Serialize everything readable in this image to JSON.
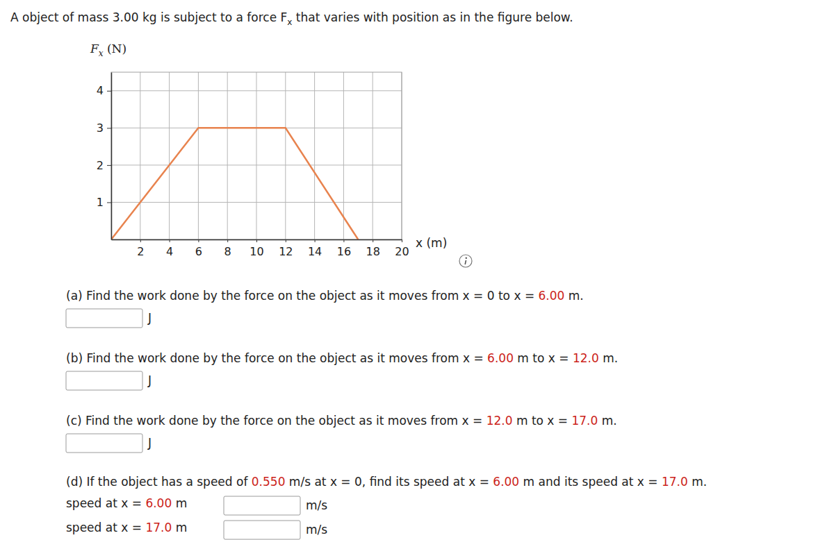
{
  "header": {
    "parts": [
      {
        "text": "A object of mass 3.00 kg is subject to a force F"
      },
      {
        "text": "x",
        "sub": true
      },
      {
        "text": " that varies with position as in the figure below."
      }
    ]
  },
  "chart_data": {
    "type": "line",
    "ylabel": [
      "F",
      "x",
      " (N)"
    ],
    "xlabel": "x (m)",
    "x": [
      0,
      6,
      12,
      17
    ],
    "values": [
      0,
      3,
      3,
      0
    ],
    "color": "#e8834e",
    "xlim": [
      0,
      20
    ],
    "ylim": [
      0,
      4.5
    ],
    "xticks": [
      2,
      4,
      6,
      8,
      10,
      12,
      14,
      16,
      18,
      20
    ],
    "yticks": [
      1,
      2,
      3,
      4
    ],
    "grid": true
  },
  "questions": [
    {
      "parts": [
        {
          "text": "(a) Find the work done by the force on the object as it moves from x = 0 to x = "
        },
        {
          "text": "6.00",
          "red": true
        },
        {
          "text": " m."
        }
      ],
      "unit": "J"
    },
    {
      "parts": [
        {
          "text": "(b) Find the work done by the force on the object as it moves from x = "
        },
        {
          "text": "6.00",
          "red": true
        },
        {
          "text": " m to x = "
        },
        {
          "text": "12.0",
          "red": true
        },
        {
          "text": " m."
        }
      ],
      "unit": "J"
    },
    {
      "parts": [
        {
          "text": "(c) Find the work done by the force on the object as it moves from x = "
        },
        {
          "text": "12.0",
          "red": true
        },
        {
          "text": " m to x = "
        },
        {
          "text": "17.0",
          "red": true
        },
        {
          "text": " m."
        }
      ],
      "unit": "J"
    },
    {
      "parts": [
        {
          "text": "(d) If the object has a speed of "
        },
        {
          "text": "0.550",
          "red": true
        },
        {
          "text": " m/s at x = 0, find its speed at x = "
        },
        {
          "text": "6.00",
          "red": true
        },
        {
          "text": " m and its speed at x = "
        },
        {
          "text": "17.0",
          "red": true
        },
        {
          "text": " m."
        }
      ],
      "answers": [
        {
          "parts": [
            {
              "text": "speed at x = "
            },
            {
              "text": "6.00",
              "red": true
            },
            {
              "text": " m"
            }
          ],
          "unit": "m/s"
        },
        {
          "parts": [
            {
              "text": "speed at x = "
            },
            {
              "text": "17.0",
              "red": true
            },
            {
              "text": " m"
            }
          ],
          "unit": "m/s"
        }
      ]
    }
  ]
}
